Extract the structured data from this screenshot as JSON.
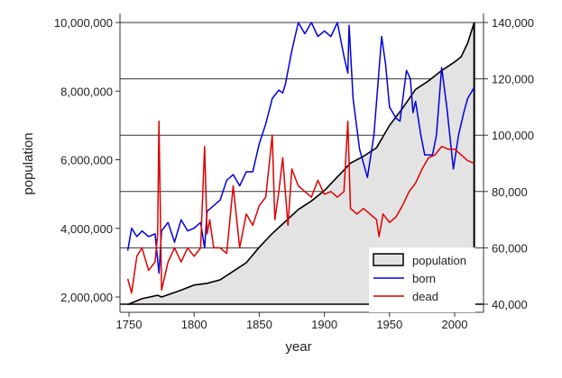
{
  "chart_data": {
    "type": "line",
    "xlabel": "year",
    "ylabel": "population",
    "xlim": [
      1745,
      2020
    ],
    "ylim_left": [
      1600000,
      10300000
    ],
    "ylim_right": [
      37000,
      141000
    ],
    "x_ticks": [
      "1750",
      "1800",
      "1850",
      "1900",
      "1950",
      "2000"
    ],
    "x_tick_values": [
      1750,
      1800,
      1850,
      1900,
      1950,
      2000
    ],
    "left_ticks": [
      "2,000,000",
      "4,000,000",
      "6,000,000",
      "8,000,000",
      "10,000,000"
    ],
    "left_tick_values": [
      2000000,
      4000000,
      6000000,
      8000000,
      10000000
    ],
    "right_ticks": [
      "40,000",
      "60,000",
      "80,000",
      "100,000",
      "120,000",
      "140,000"
    ],
    "right_tick_values": [
      40000,
      60000,
      80000,
      100000,
      120000,
      140000
    ],
    "grid": "horizontal at right-axis ticks",
    "legend": {
      "placement": "bottom-right",
      "entries": [
        "population",
        "born",
        "dead"
      ]
    },
    "series": [
      {
        "name": "population",
        "axis": "left",
        "style": "area",
        "color": "#000000",
        "fill": "#e3e3e3",
        "x": [
          1749,
          1760,
          1772,
          1775,
          1790,
          1800,
          1810,
          1820,
          1830,
          1840,
          1850,
          1860,
          1870,
          1880,
          1890,
          1900,
          1910,
          1920,
          1930,
          1940,
          1950,
          1960,
          1970,
          1980,
          1990,
          2000,
          2005,
          2010,
          2015
        ],
        "y": [
          1780000,
          1950000,
          2050000,
          2000000,
          2200000,
          2350000,
          2400000,
          2500000,
          2750000,
          3000000,
          3450000,
          3850000,
          4200000,
          4550000,
          4800000,
          5100000,
          5500000,
          5900000,
          6100000,
          6350000,
          7000000,
          7500000,
          8050000,
          8300000,
          8600000,
          8850000,
          9000000,
          9400000,
          10000000
        ]
      },
      {
        "name": "born",
        "axis": "right",
        "color": "#0000dd",
        "x": [
          1749,
          1752,
          1756,
          1760,
          1765,
          1770,
          1773,
          1775,
          1780,
          1785,
          1790,
          1795,
          1800,
          1805,
          1808,
          1810,
          1815,
          1820,
          1825,
          1830,
          1835,
          1840,
          1845,
          1850,
          1855,
          1860,
          1865,
          1868,
          1870,
          1875,
          1880,
          1885,
          1890,
          1895,
          1900,
          1905,
          1910,
          1915,
          1918,
          1919,
          1922,
          1927,
          1933,
          1938,
          1944,
          1947,
          1950,
          1955,
          1958,
          1963,
          1966,
          1968,
          1970,
          1974,
          1977,
          1983,
          1986,
          1990,
          1994,
          1999,
          2003,
          2007,
          2010,
          2015
        ],
        "y": [
          59,
          67,
          64,
          66,
          64,
          65,
          51,
          66,
          69,
          62,
          70,
          66,
          67,
          69,
          60,
          73,
          75,
          77,
          84,
          86,
          82,
          87,
          87,
          97,
          104,
          113,
          116,
          115,
          118,
          130,
          140,
          136,
          140,
          135,
          137,
          135,
          140,
          128,
          122,
          139,
          113,
          95,
          85,
          100,
          135,
          125,
          110,
          106,
          105,
          123,
          120,
          108,
          112,
          100,
          93,
          93,
          100,
          124,
          110,
          88,
          100,
          108,
          113,
          117
        ]
      },
      {
        "name": "dead",
        "axis": "right",
        "color": "#dd0000",
        "x": [
          1749,
          1752,
          1756,
          1760,
          1765,
          1770,
          1772,
          1773,
          1775,
          1780,
          1785,
          1790,
          1795,
          1800,
          1805,
          1808,
          1810,
          1812,
          1815,
          1820,
          1825,
          1830,
          1835,
          1840,
          1845,
          1850,
          1855,
          1860,
          1862,
          1865,
          1868,
          1870,
          1872,
          1875,
          1880,
          1885,
          1890,
          1895,
          1900,
          1905,
          1910,
          1915,
          1918,
          1920,
          1925,
          1930,
          1935,
          1940,
          1942,
          1945,
          1950,
          1955,
          1960,
          1965,
          1970,
          1975,
          1980,
          1985,
          1990,
          1995,
          2000,
          2005,
          2010,
          2015
        ],
        "y": [
          49,
          44,
          57,
          60,
          52,
          55,
          65,
          105,
          45,
          55,
          60,
          55,
          60,
          57,
          60,
          96,
          65,
          70,
          60,
          60,
          58,
          82,
          60,
          72,
          68,
          75,
          78,
          100,
          70,
          80,
          92,
          80,
          68,
          88,
          82,
          80,
          78,
          84,
          79,
          80,
          78,
          80,
          105,
          74,
          72,
          74,
          72,
          70,
          64,
          72,
          69,
          71,
          75,
          80,
          83,
          88,
          92,
          93,
          96,
          95,
          95,
          93,
          91,
          90
        ]
      }
    ]
  }
}
